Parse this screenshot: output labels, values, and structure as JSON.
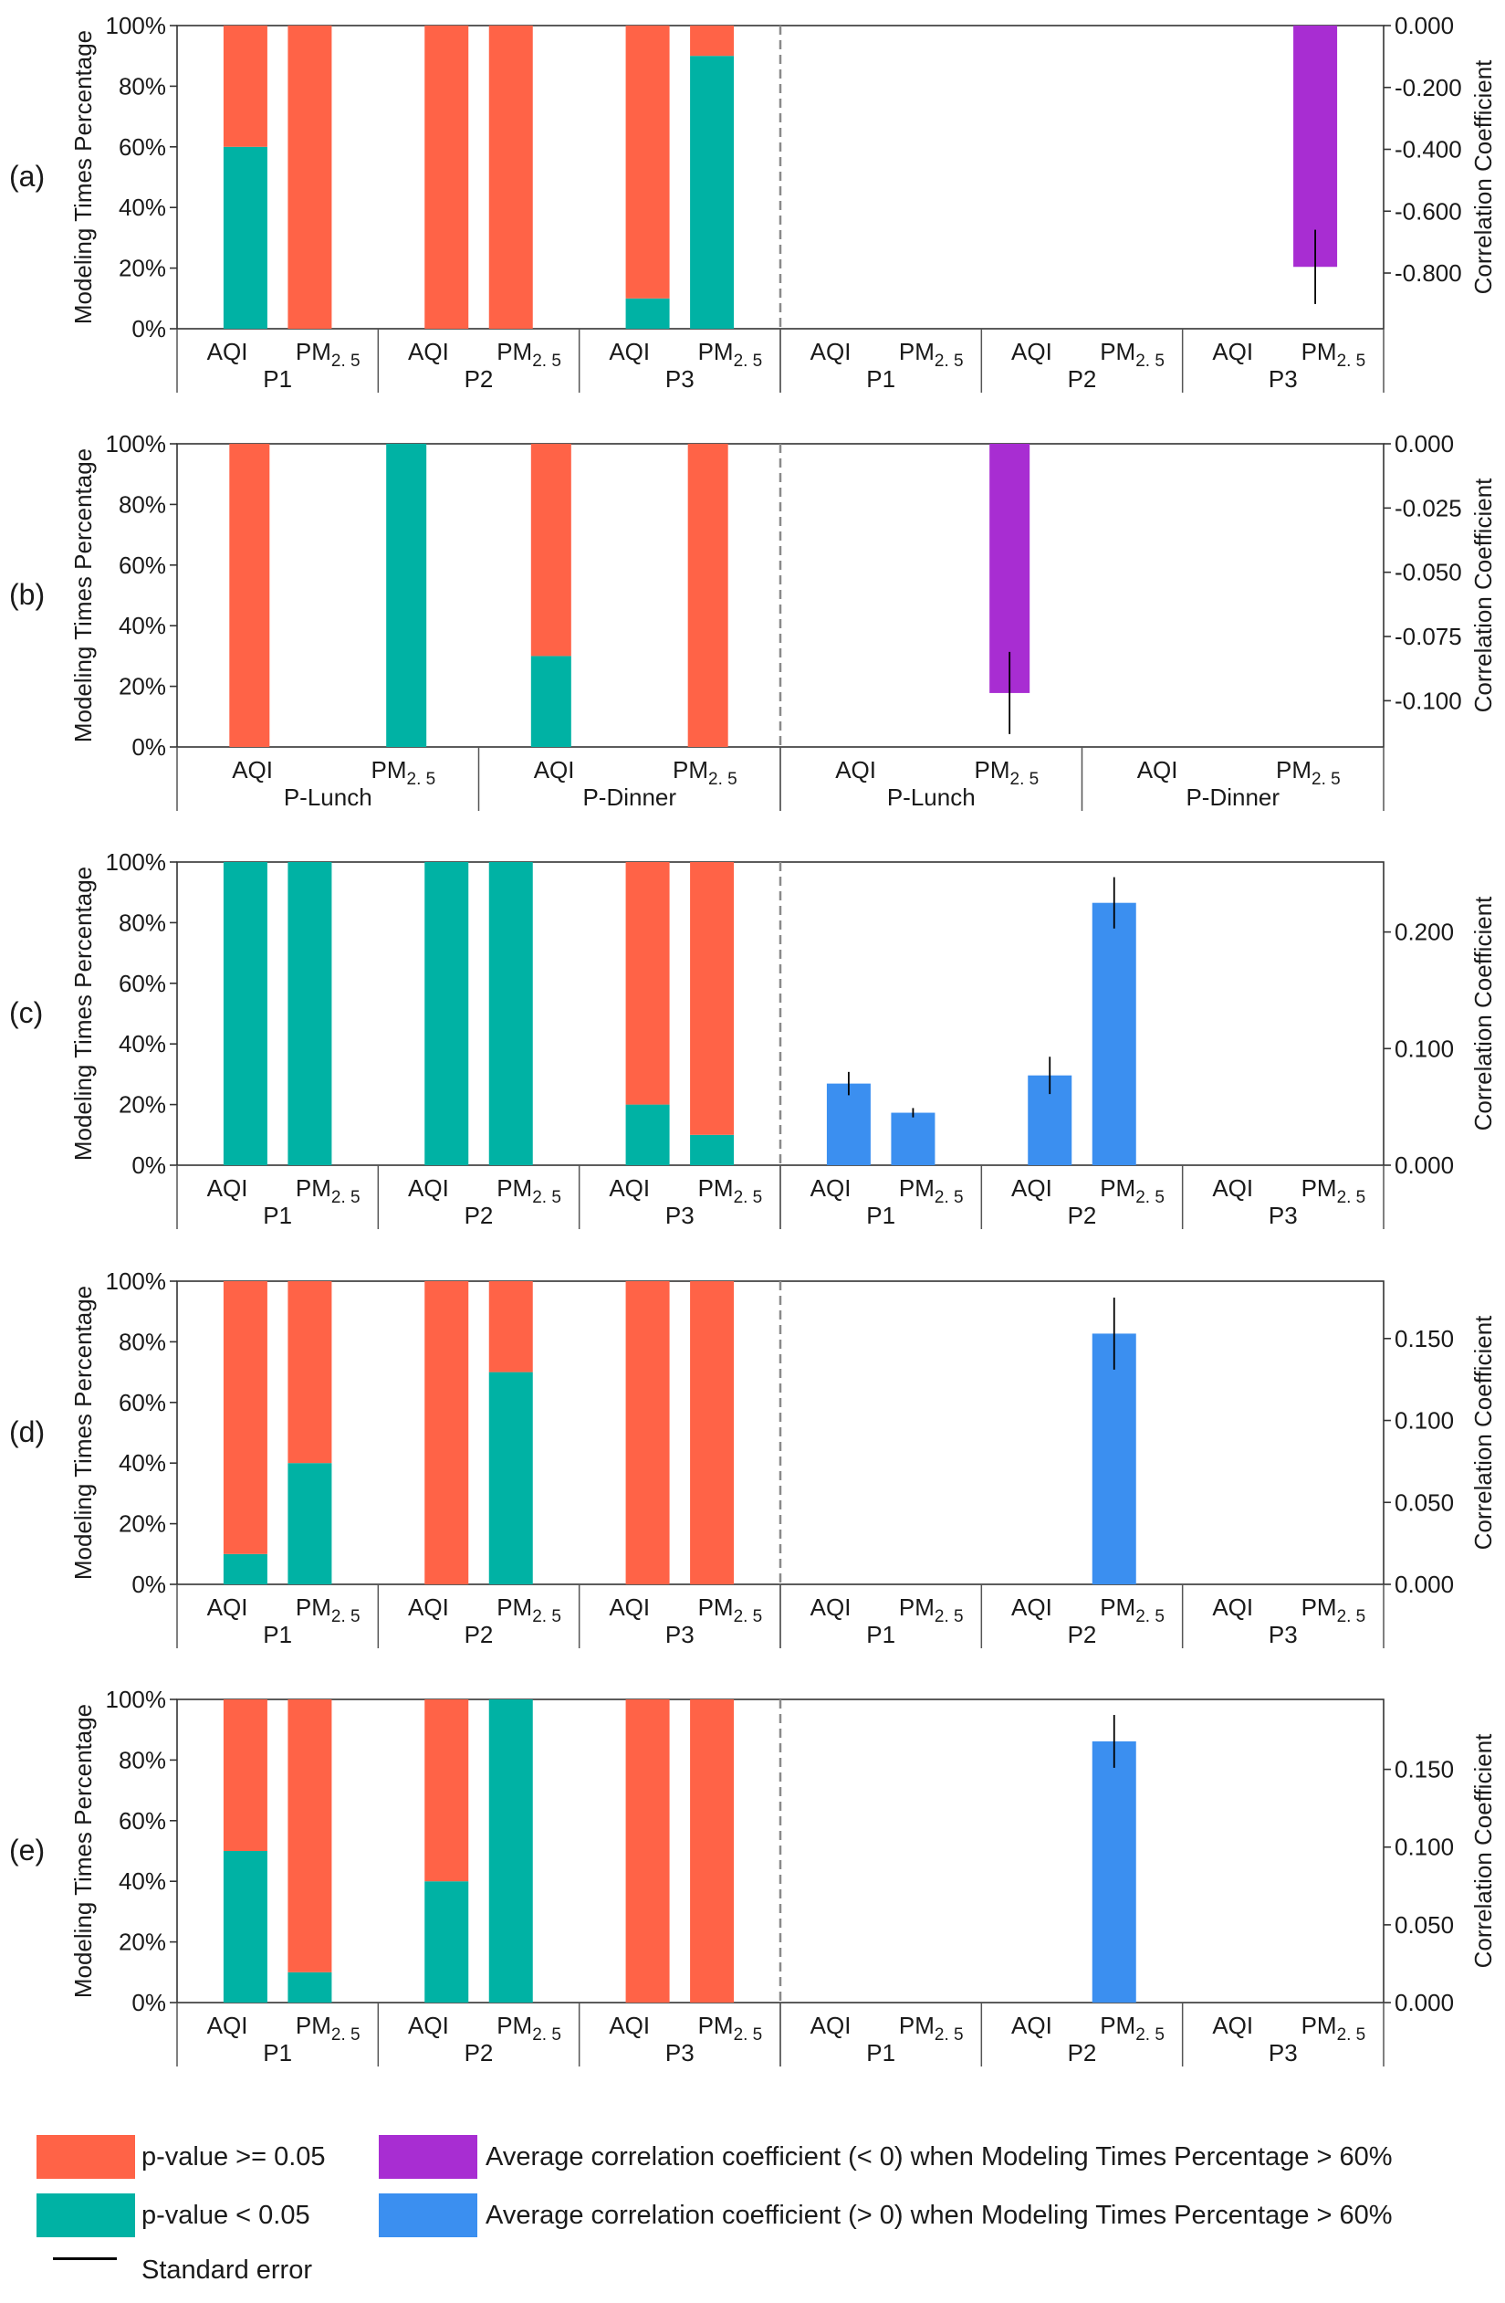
{
  "colors": {
    "not_significant": "#ff6347",
    "significant": "#00b2a4",
    "negative_corr": "#a82dd2",
    "positive_corr": "#3b8ff0",
    "error": "#000000",
    "axis": "#333333",
    "divider": "#8a8a8a"
  },
  "chart_data": [
    {
      "type": "bar",
      "panel": "(a)",
      "ylabel_left": "Modeling Times Percentage",
      "ylabel_right": "Correlation Coefficient",
      "left_ticks": [
        "0%",
        "20%",
        "40%",
        "60%",
        "80%",
        "100%"
      ],
      "right_ticks": [
        "0.000",
        "-0.200",
        "-0.400",
        "-0.600",
        "-0.800"
      ],
      "right_ylim": [
        0.0,
        -0.98
      ],
      "groups": [
        "P1",
        "P2",
        "P3"
      ],
      "categories": [
        "AQI",
        "PM2.5"
      ],
      "sub_main": "PM",
      "sub_script": "2. 5",
      "left_bars": [
        {
          "group": "P1",
          "category": "AQI",
          "significant": 60,
          "not_significant": 40
        },
        {
          "group": "P1",
          "category": "PM2.5",
          "significant": 0,
          "not_significant": 100
        },
        {
          "group": "P2",
          "category": "AQI",
          "significant": 0,
          "not_significant": 100
        },
        {
          "group": "P2",
          "category": "PM2.5",
          "significant": 0,
          "not_significant": 100
        },
        {
          "group": "P3",
          "category": "AQI",
          "significant": 10,
          "not_significant": 90
        },
        {
          "group": "P3",
          "category": "PM2.5",
          "significant": 90,
          "not_significant": 10
        }
      ],
      "right_bars": [
        {
          "group": "P3",
          "category": "PM2.5",
          "value": -0.78,
          "error": 0.12,
          "sign": "negative"
        }
      ]
    },
    {
      "type": "bar",
      "panel": "(b)",
      "ylabel_left": "Modeling Times Percentage",
      "ylabel_right": "Correlation Coefficient",
      "left_ticks": [
        "0%",
        "20%",
        "40%",
        "60%",
        "80%",
        "100%"
      ],
      "right_ticks": [
        "0.000",
        "-0.025",
        "-0.050",
        "-0.075",
        "-0.100"
      ],
      "right_ylim": [
        0.0,
        -0.118
      ],
      "groups": [
        "P-Lunch",
        "P-Dinner"
      ],
      "categories": [
        "AQI",
        "PM2.5"
      ],
      "sub_main": "PM",
      "sub_script": "2. 5",
      "left_bars": [
        {
          "group": "P-Lunch",
          "category": "AQI",
          "significant": 0,
          "not_significant": 100
        },
        {
          "group": "P-Lunch",
          "category": "PM2.5",
          "significant": 100,
          "not_significant": 0
        },
        {
          "group": "P-Dinner",
          "category": "AQI",
          "significant": 30,
          "not_significant": 70
        },
        {
          "group": "P-Dinner",
          "category": "PM2.5",
          "significant": 0,
          "not_significant": 100
        }
      ],
      "right_bars": [
        {
          "group": "P-Lunch",
          "category": "PM2.5",
          "value": -0.097,
          "error": 0.016,
          "sign": "negative"
        }
      ]
    },
    {
      "type": "bar",
      "panel": "(c)",
      "ylabel_left": "Modeling Times Percentage",
      "ylabel_right": "Correlation Coefficient",
      "left_ticks": [
        "0%",
        "20%",
        "40%",
        "60%",
        "80%",
        "100%"
      ],
      "right_ticks": [
        "0.000",
        "0.100",
        "0.200"
      ],
      "right_ylim": [
        0.0,
        0.26
      ],
      "groups": [
        "P1",
        "P2",
        "P3"
      ],
      "categories": [
        "AQI",
        "PM2.5"
      ],
      "sub_main": "PM",
      "sub_script": "2. 5",
      "left_bars": [
        {
          "group": "P1",
          "category": "AQI",
          "significant": 100,
          "not_significant": 0
        },
        {
          "group": "P1",
          "category": "PM2.5",
          "significant": 100,
          "not_significant": 0
        },
        {
          "group": "P2",
          "category": "AQI",
          "significant": 100,
          "not_significant": 0
        },
        {
          "group": "P2",
          "category": "PM2.5",
          "significant": 100,
          "not_significant": 0
        },
        {
          "group": "P3",
          "category": "AQI",
          "significant": 20,
          "not_significant": 80
        },
        {
          "group": "P3",
          "category": "PM2.5",
          "significant": 10,
          "not_significant": 90
        }
      ],
      "right_bars": [
        {
          "group": "P1",
          "category": "AQI",
          "value": 0.07,
          "error": 0.01,
          "sign": "positive"
        },
        {
          "group": "P1",
          "category": "PM2.5",
          "value": 0.045,
          "error": 0.004,
          "sign": "positive"
        },
        {
          "group": "P2",
          "category": "AQI",
          "value": 0.077,
          "error": 0.016,
          "sign": "positive"
        },
        {
          "group": "P2",
          "category": "PM2.5",
          "value": 0.225,
          "error": 0.022,
          "sign": "positive"
        }
      ]
    },
    {
      "type": "bar",
      "panel": "(d)",
      "ylabel_left": "Modeling Times Percentage",
      "ylabel_right": "Correlation Coefficient",
      "left_ticks": [
        "0%",
        "20%",
        "40%",
        "60%",
        "80%",
        "100%"
      ],
      "right_ticks": [
        "0.000",
        "0.050",
        "0.100",
        "0.150"
      ],
      "right_ylim": [
        0.0,
        0.185
      ],
      "groups": [
        "P1",
        "P2",
        "P3"
      ],
      "categories": [
        "AQI",
        "PM2.5"
      ],
      "sub_main": "PM",
      "sub_script": "2. 5",
      "left_bars": [
        {
          "group": "P1",
          "category": "AQI",
          "significant": 10,
          "not_significant": 90
        },
        {
          "group": "P1",
          "category": "PM2.5",
          "significant": 40,
          "not_significant": 60
        },
        {
          "group": "P2",
          "category": "AQI",
          "significant": 0,
          "not_significant": 100
        },
        {
          "group": "P2",
          "category": "PM2.5",
          "significant": 70,
          "not_significant": 30
        },
        {
          "group": "P3",
          "category": "AQI",
          "significant": 0,
          "not_significant": 100
        },
        {
          "group": "P3",
          "category": "PM2.5",
          "significant": 0,
          "not_significant": 100
        }
      ],
      "right_bars": [
        {
          "group": "P2",
          "category": "PM2.5",
          "value": 0.153,
          "error": 0.022,
          "sign": "positive"
        }
      ]
    },
    {
      "type": "bar",
      "panel": "(e)",
      "ylabel_left": "Modeling Times Percentage",
      "ylabel_right": "Correlation Coefficient",
      "left_ticks": [
        "0%",
        "20%",
        "40%",
        "60%",
        "80%",
        "100%"
      ],
      "right_ticks": [
        "0.000",
        "0.050",
        "0.100",
        "0.150"
      ],
      "right_ylim": [
        0.0,
        0.195
      ],
      "groups": [
        "P1",
        "P2",
        "P3"
      ],
      "categories": [
        "AQI",
        "PM2.5"
      ],
      "sub_main": "PM",
      "sub_script": "2. 5",
      "left_bars": [
        {
          "group": "P1",
          "category": "AQI",
          "significant": 50,
          "not_significant": 50
        },
        {
          "group": "P1",
          "category": "PM2.5",
          "significant": 10,
          "not_significant": 90
        },
        {
          "group": "P2",
          "category": "AQI",
          "significant": 40,
          "not_significant": 60
        },
        {
          "group": "P2",
          "category": "PM2.5",
          "significant": 100,
          "not_significant": 0
        },
        {
          "group": "P3",
          "category": "AQI",
          "significant": 0,
          "not_significant": 100
        },
        {
          "group": "P3",
          "category": "PM2.5",
          "significant": 0,
          "not_significant": 100
        }
      ],
      "right_bars": [
        {
          "group": "P2",
          "category": "PM2.5",
          "value": 0.168,
          "error": 0.017,
          "sign": "positive"
        }
      ]
    }
  ],
  "legend": {
    "not_significant_label": "p-value >= 0.05",
    "significant_label": "p-value < 0.05",
    "error_label": "Standard error",
    "negative_label": "Average correlation coefficient (< 0) when Modeling Times Percentage > 60%",
    "positive_label": "Average correlation coefficient (> 0) when Modeling Times Percentage > 60%"
  }
}
